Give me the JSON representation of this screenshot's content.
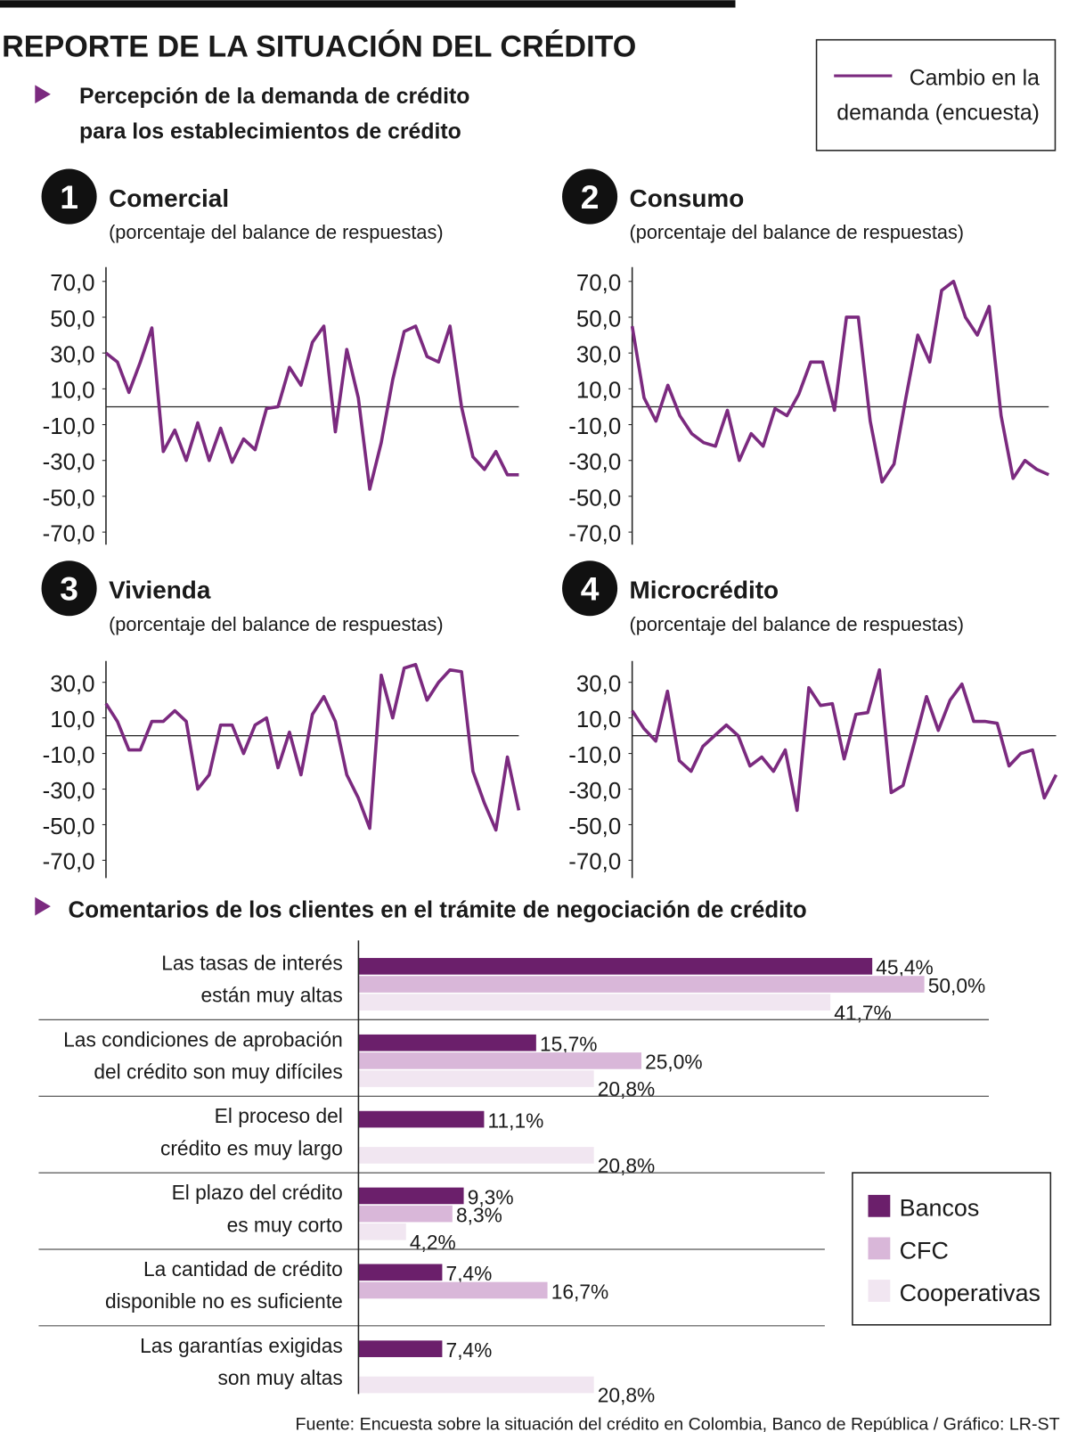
{
  "title": "REPORTE DE LA SITUACIÓN DEL CRÉDITO",
  "section_title": "Percepción de la demanda de crédito\npara los establecimientos de crédito",
  "legend": "Cambio en la\ndemanda (encuesta)",
  "legend_color": "#7b2a7f",
  "source": "Fuente: Encuesta sobre la situación del crédito en Colombia, Banco de República / Gráfico: LR-ST",
  "chart_data": [
    {
      "type": "line",
      "number": "1",
      "title": "Comercial",
      "subtitle": "(porcentaje del balance de respuestas)",
      "color": "#7b2a7f",
      "zero_line": true,
      "ylim": [
        -77,
        78
      ],
      "yticks": [
        {
          "value": 70,
          "label": "70,0"
        },
        {
          "value": 50,
          "label": "50,0"
        },
        {
          "value": 30,
          "label": "30,0"
        },
        {
          "value": 10,
          "label": "10,0"
        },
        {
          "value": -10,
          "label": "-10,0"
        },
        {
          "value": -30,
          "label": "-30,0"
        },
        {
          "value": -50,
          "label": "-50,0"
        },
        {
          "value": -70,
          "label": "-70,0"
        }
      ],
      "values": [
        30,
        25,
        8,
        25,
        44,
        -25,
        -13,
        -30,
        -9,
        -30,
        -12,
        -31,
        -18,
        -24,
        -1,
        0,
        22,
        12,
        36,
        45,
        -14,
        32,
        5,
        -46,
        -20,
        15,
        42,
        45,
        28,
        25,
        45,
        0,
        -28,
        -35,
        -25,
        -38,
        -38
      ]
    },
    {
      "type": "line",
      "number": "2",
      "title": "Consumo",
      "subtitle": "(porcentaje del balance de respuestas)",
      "color": "#7b2a7f",
      "zero_line": true,
      "ylim": [
        -77,
        78
      ],
      "yticks": [
        {
          "value": 70,
          "label": "70,0"
        },
        {
          "value": 50,
          "label": "50,0"
        },
        {
          "value": 30,
          "label": "30,0"
        },
        {
          "value": 10,
          "label": "10,0"
        },
        {
          "value": -10,
          "label": "-10,0"
        },
        {
          "value": -30,
          "label": "-30,0"
        },
        {
          "value": -50,
          "label": "-50,0"
        },
        {
          "value": -70,
          "label": "-70,0"
        }
      ],
      "values": [
        45,
        5,
        -8,
        12,
        -5,
        -15,
        -20,
        -22,
        -2,
        -30,
        -15,
        -22,
        -1,
        -5,
        7,
        25,
        25,
        -2,
        50,
        50,
        -8,
        -42,
        -32,
        5,
        40,
        25,
        65,
        70,
        50,
        40,
        56,
        -5,
        -40,
        -30,
        -35,
        -38
      ]
    },
    {
      "type": "line",
      "number": "3",
      "title": "Vivienda",
      "subtitle": "(porcentaje del balance de respuestas)",
      "color": "#7b2a7f",
      "zero_line": true,
      "ylim": [
        -80,
        42
      ],
      "yticks": [
        {
          "value": 30,
          "label": "30,0"
        },
        {
          "value": 10,
          "label": "10,0"
        },
        {
          "value": -10,
          "label": "-10,0"
        },
        {
          "value": -30,
          "label": "-30,0"
        },
        {
          "value": -50,
          "label": "-50,0"
        },
        {
          "value": -70,
          "label": "-70,0"
        }
      ],
      "values": [
        18,
        8,
        -8,
        -8,
        8,
        8,
        14,
        8,
        -30,
        -22,
        6,
        6,
        -10,
        6,
        10,
        -18,
        2,
        -22,
        12,
        22,
        8,
        -22,
        -35,
        -52,
        34,
        10,
        38,
        40,
        20,
        30,
        37,
        36,
        -20,
        -38,
        -53,
        -12,
        -42
      ]
    },
    {
      "type": "line",
      "number": "4",
      "title": "Microcrédito",
      "subtitle": "(porcentaje del balance de respuestas)",
      "color": "#7b2a7f",
      "zero_line": true,
      "ylim": [
        -80,
        42
      ],
      "yticks": [
        {
          "value": 30,
          "label": "30,0"
        },
        {
          "value": 10,
          "label": "10,0"
        },
        {
          "value": -10,
          "label": "-10,0"
        },
        {
          "value": -30,
          "label": "-30,0"
        },
        {
          "value": -50,
          "label": "-50,0"
        },
        {
          "value": -70,
          "label": "-70,0"
        }
      ],
      "values": [
        14,
        4,
        -3,
        25,
        -14,
        -20,
        -6,
        0,
        6,
        0,
        -17,
        -12,
        -20,
        -8,
        -42,
        27,
        17,
        18,
        -13,
        12,
        13,
        37,
        -32,
        -28,
        -3,
        22,
        3,
        20,
        29,
        8,
        8,
        7,
        -17,
        -10,
        -8,
        -35,
        -22
      ]
    },
    {
      "type": "hbar",
      "title": "Comentarios de los clientes en el trámite de negociación de crédito",
      "categories": [
        "Las tasas de interés\nestán muy altas",
        "Las condiciones de aprobación\ndel crédito son muy difíciles",
        "El proceso del\ncrédito es muy largo",
        "El plazo del crédito\nes muy corto",
        "La cantidad de crédito\ndisponible no es suficiente",
        "Las garantías exigidas\nson muy altas"
      ],
      "xlim": [
        0,
        56
      ],
      "legend": "lower right",
      "series": [
        {
          "name": "Bancos",
          "color": "#6b1f6b",
          "values": [
            45.4,
            15.7,
            11.1,
            9.3,
            7.4,
            7.4
          ],
          "value_labels": [
            "45,4%",
            "15,7%",
            "11,1%",
            "9,3%",
            "7,4%",
            "7,4%"
          ]
        },
        {
          "name": "CFC",
          "color": "#d9b7d9",
          "values": [
            50.0,
            25.0,
            null,
            8.3,
            16.7,
            null
          ],
          "value_labels": [
            "50,0%",
            "25,0%",
            null,
            "8,3%",
            "16,7%",
            null
          ]
        },
        {
          "name": "Cooperativas",
          "color": "#f1e6f1",
          "values": [
            41.7,
            20.8,
            20.8,
            4.2,
            null,
            20.8
          ],
          "value_labels": [
            "41,7%",
            "20,8%",
            "20,8%",
            "4,2%",
            null,
            "20,8%"
          ]
        }
      ]
    }
  ]
}
